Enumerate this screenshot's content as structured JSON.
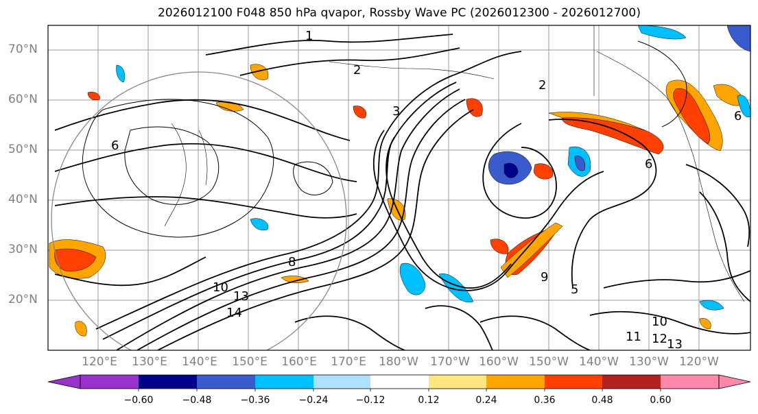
{
  "title": "2026012100 F048 850 hPa qvapor, Rossby Wave PC (2026012300 - 2026012700)",
  "lat_labels": [
    "70°N",
    "60°N",
    "50°N",
    "40°N",
    "30°N",
    "20°N"
  ],
  "lon_labels": [
    "120°E",
    "130°E",
    "140°E",
    "150°E",
    "160°E",
    "170°E",
    "180°W",
    "170°W",
    "160°W",
    "150°W",
    "140°W",
    "130°W",
    "120°W"
  ],
  "contour_labels": [
    "1",
    "2",
    "2",
    "3",
    "6",
    "6",
    "8",
    "10",
    "13",
    "14",
    "10",
    "11",
    "12",
    "13",
    "6",
    "5",
    "9"
  ],
  "colorbar": {
    "ticks": [
      "−0.60",
      "−0.48",
      "−0.36",
      "−0.24",
      "−0.12",
      "0.12",
      "0.24",
      "0.36",
      "0.48",
      "0.60"
    ],
    "colors": [
      "#9932cc",
      "#00008b",
      "#3a5bcc",
      "#00bfff",
      "#b0e0ff",
      "#ffffff",
      "#ffe680",
      "#ffa500",
      "#ff4000",
      "#b22222",
      "#ff88aa"
    ]
  }
}
